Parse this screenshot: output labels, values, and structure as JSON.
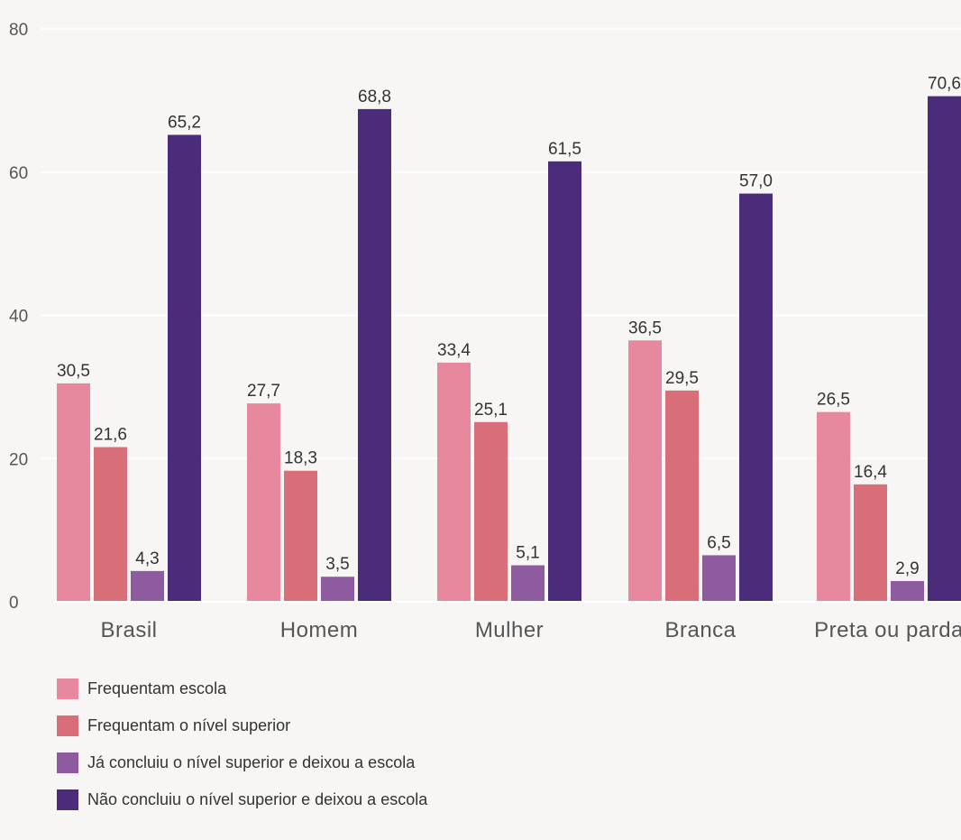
{
  "chart_data": {
    "type": "bar",
    "categories": [
      "Brasil",
      "Homem",
      "Mulher",
      "Branca",
      "Preta ou parda"
    ],
    "series": [
      {
        "name": "Frequentam escola",
        "color": "#e8889f",
        "values": [
          30.5,
          27.7,
          33.4,
          36.5,
          26.5
        ],
        "labels": [
          "30,5",
          "27,7",
          "33,4",
          "36,5",
          "26,5"
        ]
      },
      {
        "name": "Frequentam o nível superior",
        "color": "#d86e78",
        "values": [
          21.6,
          18.3,
          25.1,
          29.5,
          16.4
        ],
        "labels": [
          "21,6",
          "18,3",
          "25,1",
          "29,5",
          "16,4"
        ]
      },
      {
        "name": "Já concluiu o nível superior e deixou a escola",
        "color": "#8e5aa0",
        "values": [
          4.3,
          3.5,
          5.1,
          6.5,
          2.9
        ],
        "labels": [
          "4,3",
          "3,5",
          "5,1",
          "6,5",
          "2,9"
        ]
      },
      {
        "name": "Não concluiu o nível superior e deixou a escola",
        "color": "#4a2c7a",
        "values": [
          65.2,
          68.8,
          61.5,
          57.0,
          70.6
        ],
        "labels": [
          "65,2",
          "68,8",
          "61,5",
          "57,0",
          "70,6"
        ]
      }
    ],
    "ylim": [
      0,
      80
    ],
    "yticks": [
      0,
      20,
      40,
      60,
      80
    ],
    "ytick_labels": [
      "0",
      "20",
      "40",
      "60",
      "80"
    ],
    "grid": true,
    "legend_position": "bottom-left",
    "title": "",
    "xlabel": "",
    "ylabel": ""
  }
}
